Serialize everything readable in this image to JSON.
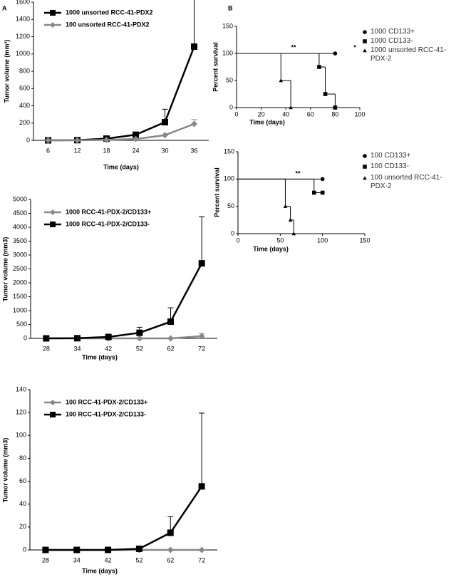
{
  "chart_data": [
    {
      "type": "line",
      "panel": "A",
      "y_label": "Tumor volume (mm³)",
      "x_label": "Time (days)",
      "categories": [
        "6",
        "12",
        "18",
        "24",
        "30",
        "36"
      ],
      "ylim": [
        0,
        1600
      ],
      "yticks": [
        0,
        200,
        400,
        600,
        800,
        1000,
        1200,
        1400,
        1600
      ],
      "series": [
        {
          "name": "1000 unsorted RCC-41-PDX2",
          "color": "#000000",
          "marker": "square",
          "values": [
            0,
            2,
            20,
            65,
            210,
            1085
          ],
          "errors": [
            0,
            0,
            0,
            15,
            150,
            585
          ]
        },
        {
          "name": "100 unsorted RCC-41-PDX2",
          "color": "#888888",
          "marker": "diamond",
          "values": [
            0,
            0,
            5,
            15,
            60,
            190
          ],
          "errors": [
            0,
            0,
            0,
            0,
            0,
            50
          ]
        }
      ]
    },
    {
      "type": "line",
      "y_label": "Tumor volume (mm3)",
      "x_label": "Time  (days)",
      "categories": [
        "28",
        "34",
        "42",
        "52",
        "62",
        "72"
      ],
      "ylim": [
        0,
        5000
      ],
      "yticks": [
        0,
        500,
        1000,
        1500,
        2000,
        2500,
        3000,
        3500,
        4000,
        4500,
        5000
      ],
      "series": [
        {
          "name": "1000 RCC-41-PDX-2/CD133+",
          "color": "#888888",
          "marker": "diamond",
          "values": [
            0,
            0,
            0,
            0,
            0,
            80
          ],
          "errors": [
            0,
            0,
            0,
            0,
            0,
            100
          ]
        },
        {
          "name": "1000 RCC-41-PDX-2/CD133-",
          "color": "#000000",
          "marker": "square",
          "values": [
            0,
            5,
            50,
            200,
            600,
            2700
          ],
          "errors": [
            0,
            0,
            20,
            200,
            500,
            1680
          ]
        }
      ]
    },
    {
      "type": "line",
      "y_label": "Tumor volume (mm3)",
      "x_label": "Time (days)",
      "categories": [
        "28",
        "34",
        "42",
        "52",
        "62",
        "72"
      ],
      "ylim": [
        0,
        140
      ],
      "yticks": [
        0,
        20,
        40,
        60,
        80,
        100,
        120,
        140
      ],
      "series": [
        {
          "name": "100 RCC-41-PDX-2/CD133+",
          "color": "#888888",
          "marker": "diamond",
          "values": [
            0,
            0,
            0,
            0,
            0,
            0
          ],
          "errors": [
            0,
            0,
            0,
            0,
            0,
            0
          ]
        },
        {
          "name": "100 RCC-41-PDX-2/CD133-",
          "color": "#000000",
          "marker": "square",
          "values": [
            0,
            0,
            0,
            1,
            15,
            55.5
          ],
          "errors": [
            0,
            0,
            0,
            0.5,
            14,
            64
          ]
        }
      ]
    },
    {
      "type": "step",
      "panel": "B",
      "y_label": "Percent survival",
      "x_label": "Time (days)",
      "xlim": [
        0,
        100
      ],
      "xticks": [
        0,
        20,
        40,
        60,
        80,
        100
      ],
      "ylim": [
        0,
        150
      ],
      "yticks": [
        0,
        50,
        100,
        150
      ],
      "annotations": [
        "**",
        "*"
      ],
      "series": [
        {
          "name": "1000 CD133+",
          "color": "#000000",
          "marker": "circle",
          "x": [
            0,
            80
          ],
          "values": [
            100,
            100
          ]
        },
        {
          "name": "1000 CD133-",
          "color": "#000000",
          "marker": "square",
          "x": [
            0,
            67,
            72,
            80
          ],
          "values": [
            100,
            75,
            25,
            0
          ]
        },
        {
          "name": "1000 unsorted RCC-41-PDX-2",
          "color": "#000000",
          "marker": "triangle",
          "x": [
            0,
            36,
            44
          ],
          "values": [
            100,
            50,
            0
          ]
        }
      ]
    },
    {
      "type": "step",
      "y_label": "Percent survival",
      "x_label": "Time (days)",
      "xlim": [
        0,
        150
      ],
      "xticks": [
        0,
        50,
        100,
        150
      ],
      "ylim": [
        0,
        150
      ],
      "yticks": [
        0,
        50,
        100,
        150
      ],
      "annotations": [
        "**"
      ],
      "series": [
        {
          "name": "100 CD133+",
          "color": "#000000",
          "marker": "circle",
          "x": [
            0,
            100
          ],
          "values": [
            100,
            100
          ]
        },
        {
          "name": "100 CD133-",
          "color": "#000000",
          "marker": "square",
          "x": [
            0,
            90,
            100
          ],
          "values": [
            100,
            75,
            75
          ]
        },
        {
          "name": "100 unsorted RCC-41-PDX-2",
          "color": "#000000",
          "marker": "triangle",
          "x": [
            0,
            56,
            62,
            66
          ],
          "values": [
            100,
            50,
            25,
            0
          ]
        }
      ]
    }
  ]
}
